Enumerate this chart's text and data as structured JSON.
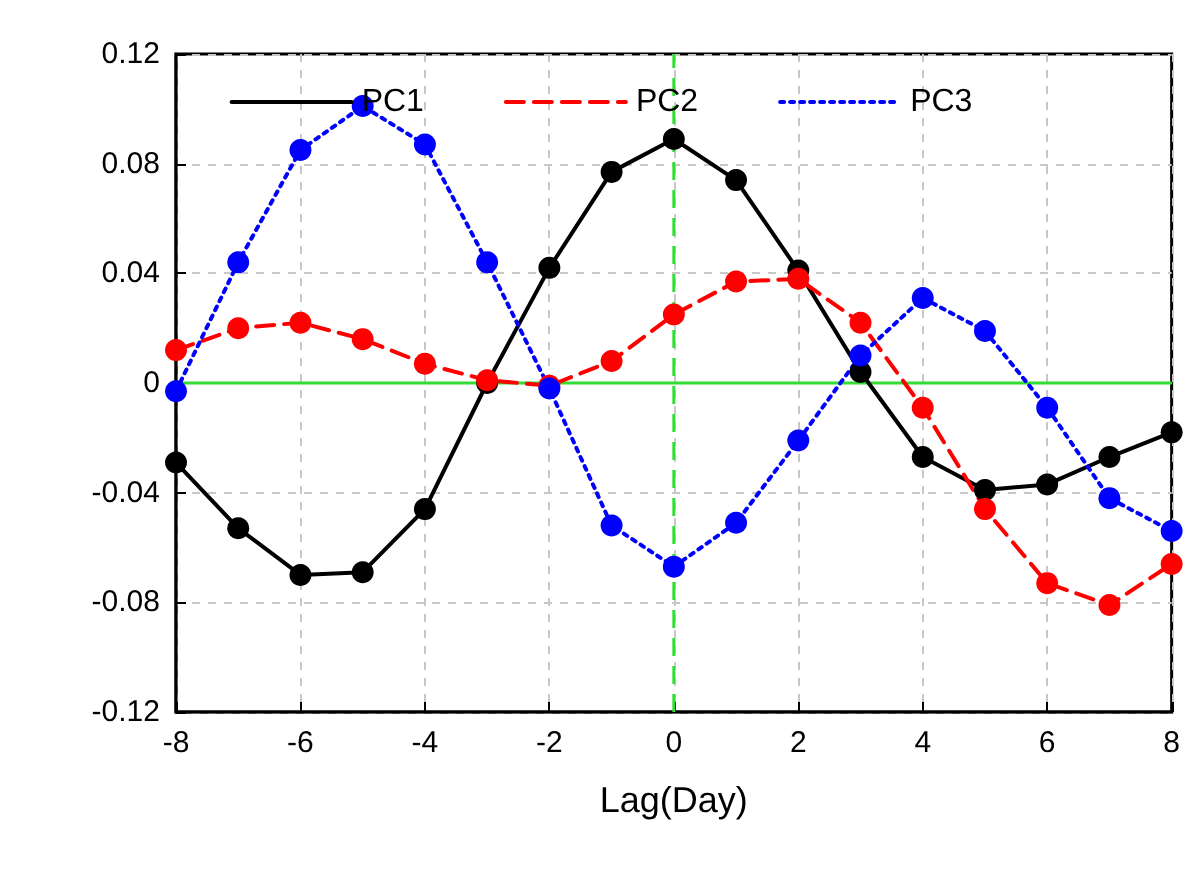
{
  "chart_data": {
    "type": "line",
    "xlabel": "Lag(Day)",
    "x": [
      -8,
      -7,
      -6,
      -5,
      -4,
      -3,
      -2,
      -1,
      0,
      1,
      2,
      3,
      4,
      5,
      6,
      7,
      8
    ],
    "series": [
      {
        "name": "PC1",
        "color": "#000000",
        "line_style": "solid",
        "values": [
          -0.029,
          -0.053,
          -0.07,
          -0.069,
          -0.046,
          0.0,
          0.042,
          0.077,
          0.089,
          0.074,
          0.041,
          0.004,
          -0.027,
          -0.039,
          -0.037,
          -0.027,
          -0.018
        ]
      },
      {
        "name": "PC2",
        "color": "#ff0000",
        "line_style": "dashed",
        "values": [
          0.012,
          0.02,
          0.022,
          0.016,
          0.007,
          0.001,
          -0.001,
          0.008,
          0.025,
          0.037,
          0.038,
          0.022,
          -0.009,
          -0.046,
          -0.073,
          -0.081,
          -0.066
        ]
      },
      {
        "name": "PC3",
        "color": "#0000ff",
        "line_style": "dotted",
        "values": [
          -0.003,
          0.044,
          0.085,
          0.101,
          0.087,
          0.044,
          -0.002,
          -0.052,
          -0.067,
          -0.051,
          -0.021,
          0.01,
          0.031,
          0.019,
          -0.009,
          -0.042,
          -0.054
        ]
      }
    ],
    "marker": "circle",
    "xlim": [
      -8,
      8
    ],
    "xticks": [
      -8,
      -6,
      -4,
      -2,
      0,
      2,
      4,
      6,
      8
    ],
    "ylim": [
      -0.12,
      0.12
    ],
    "yticks": [
      -0.12,
      -0.08,
      -0.04,
      0,
      0.04,
      0.08,
      0.12
    ],
    "grid": true,
    "legend": "top",
    "ref_lines": [
      {
        "axis": "x",
        "value": 0,
        "color": "#33dd33",
        "line_style": "dashed"
      },
      {
        "axis": "y",
        "value": 0,
        "color": "#33dd33",
        "line_style": "solid"
      }
    ]
  }
}
